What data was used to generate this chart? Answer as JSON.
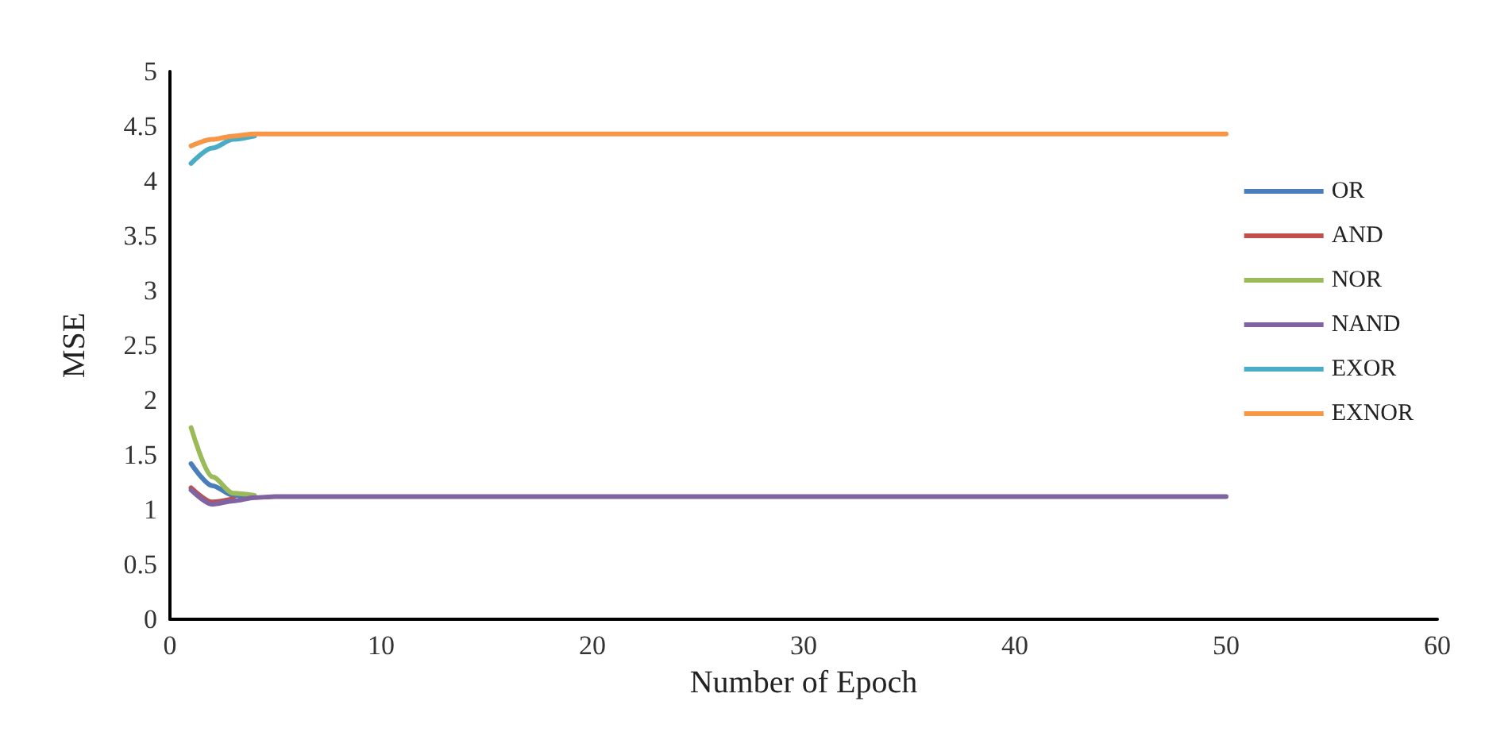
{
  "chart_data": {
    "type": "line",
    "xlabel": "Number of Epoch",
    "ylabel": "MSE",
    "x": [
      1,
      2,
      3,
      4,
      5,
      10,
      20,
      30,
      40,
      50
    ],
    "series": [
      {
        "name": "OR",
        "color": "#4a7ebb",
        "x": [
          1,
          2,
          3,
          4
        ],
        "values": [
          1.42,
          1.22,
          1.13,
          1.12
        ]
      },
      {
        "name": "AND",
        "color": "#c0504d",
        "x": [
          1,
          2,
          3
        ],
        "values": [
          1.2,
          1.07,
          1.1
        ]
      },
      {
        "name": "NOR",
        "color": "#9bbb59",
        "x": [
          1,
          2,
          3,
          4
        ],
        "values": [
          1.75,
          1.3,
          1.15,
          1.13
        ]
      },
      {
        "name": "NAND",
        "color": "#8064a2",
        "values": [
          1.18,
          1.05,
          1.08,
          1.11,
          1.12,
          1.12,
          1.12,
          1.12,
          1.12,
          1.12
        ]
      },
      {
        "name": "EXOR",
        "color": "#4bacc6",
        "x": [
          1,
          2,
          3,
          4
        ],
        "values": [
          4.16,
          4.3,
          4.38,
          4.41
        ]
      },
      {
        "name": "EXNOR",
        "color": "#f79646",
        "values": [
          4.32,
          4.38,
          4.41,
          4.43,
          4.43,
          4.43,
          4.43,
          4.43,
          4.43,
          4.43
        ]
      }
    ],
    "xlim": [
      0,
      60
    ],
    "xticks": [
      0,
      10,
      20,
      30,
      40,
      50,
      60
    ],
    "ylim": [
      0,
      5
    ],
    "yticks": [
      0,
      0.5,
      1,
      1.5,
      2,
      2.5,
      3,
      3.5,
      4,
      4.5,
      5
    ],
    "grid": false,
    "legend": "right",
    "marker": "none",
    "line_style": "solid"
  }
}
